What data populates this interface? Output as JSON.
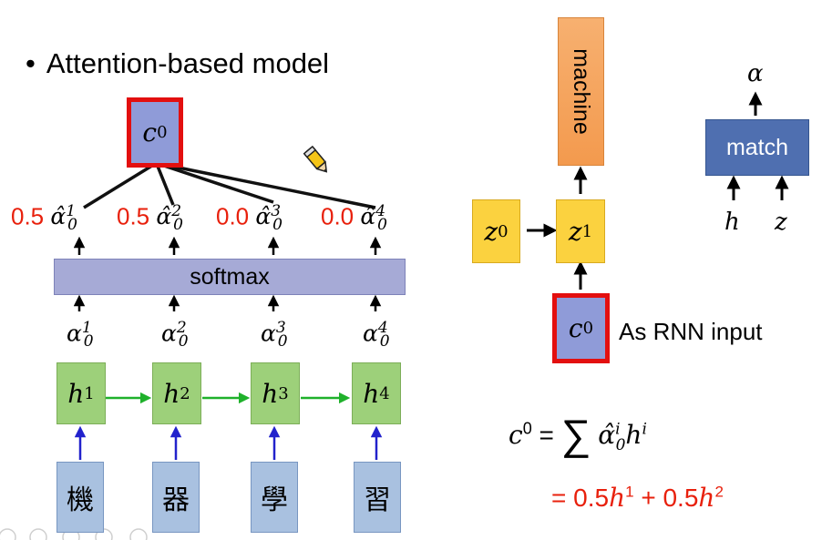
{
  "title": "Attention-based model",
  "bullet": "•",
  "context_vector": {
    "base": "c",
    "sup": "0"
  },
  "weights": [
    "0.5",
    "0.5",
    "0.0",
    "0.0"
  ],
  "alpha_hat_symbol": "α̂",
  "alpha_symbol": "α",
  "alpha_sub": "0",
  "indices": [
    "1",
    "2",
    "3",
    "4"
  ],
  "softmax_label": "softmax",
  "hidden": {
    "base": "h"
  },
  "input_chars": [
    "機",
    "器",
    "學",
    "習"
  ],
  "decoder": {
    "machine_label": "machine",
    "z0": {
      "base": "z",
      "sup": "0"
    },
    "z1": {
      "base": "z",
      "sup": "1"
    },
    "c0": {
      "base": "c",
      "sup": "0"
    },
    "rnn_input_label": "As RNN input"
  },
  "match_block": {
    "label": "match",
    "output": "α",
    "inputs": [
      "h",
      "z"
    ]
  },
  "formula": {
    "lhs": "c",
    "lhs_sup": "0",
    "eq": "=",
    "sum": "∑",
    "term_sup": "i",
    "term_sub": "0",
    "h_sup": "i",
    "line2": "= 0.5",
    "line2_mid": " + 0.5",
    "h1_sup": "1",
    "h2_sup": "2"
  },
  "colors": {
    "red": "#e8200c",
    "green_arrow": "#1fb12b",
    "blue_arrow": "#2222cc"
  }
}
